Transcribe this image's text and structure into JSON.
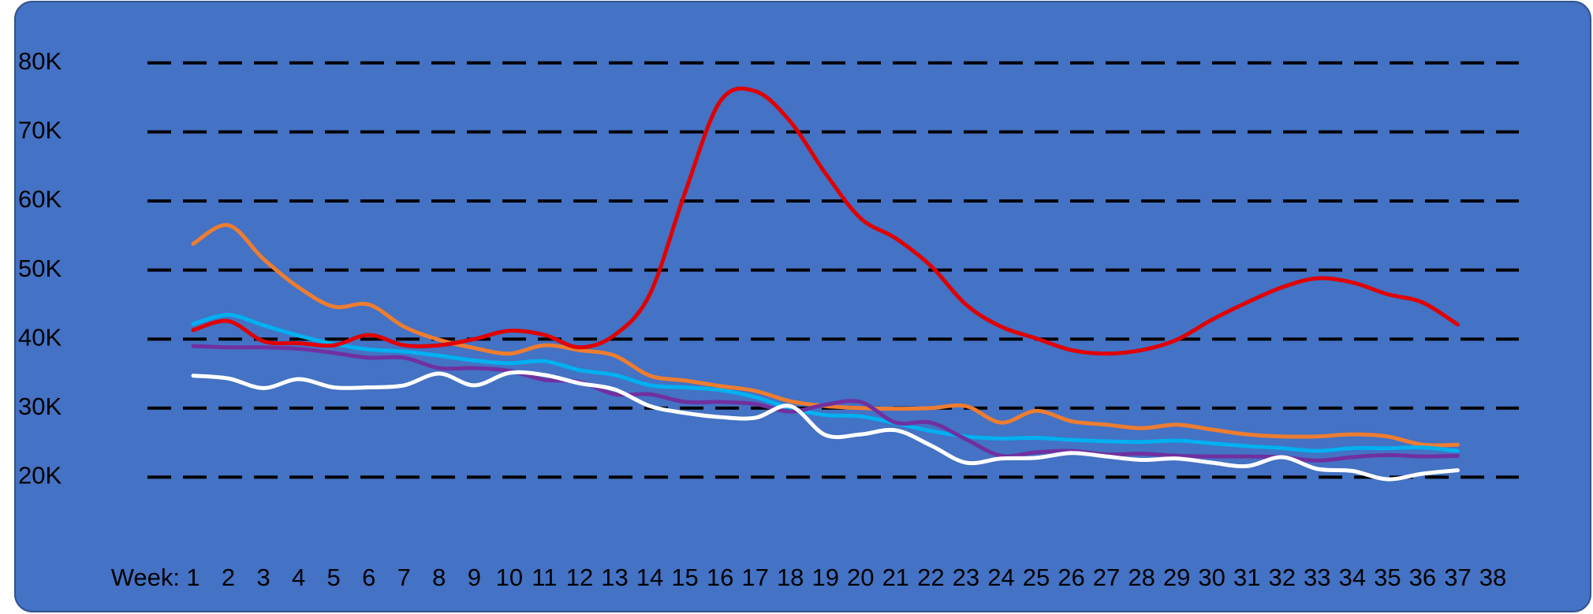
{
  "chart_data": {
    "type": "line",
    "xlabel": "Week:",
    "categories": [
      "1",
      "2",
      "3",
      "4",
      "5",
      "6",
      "7",
      "8",
      "9",
      "10",
      "11",
      "12",
      "13",
      "14",
      "15",
      "16",
      "17",
      "18",
      "19",
      "20",
      "21",
      "22",
      "23",
      "24",
      "25",
      "26",
      "27",
      "28",
      "29",
      "30",
      "31",
      "32",
      "33",
      "34",
      "35",
      "36",
      "37",
      "38"
    ],
    "series": [
      {
        "color": "#ed7d31",
        "values": [
          53800,
          56500,
          51600,
          47500,
          44700,
          45000,
          41800,
          39900,
          38700,
          37900,
          39100,
          38400,
          37600,
          34700,
          34000,
          33200,
          32500,
          31000,
          30300,
          30000,
          29900,
          30000,
          30300,
          27900,
          29600,
          28100,
          27600,
          27100,
          27600,
          26900,
          26200,
          25900,
          25900,
          26200,
          25900,
          24700,
          24700,
          null
        ]
      },
      {
        "color": "#00b0f0",
        "values": [
          42200,
          43500,
          42000,
          40500,
          39300,
          38500,
          38200,
          37600,
          36900,
          36500,
          36800,
          35500,
          34800,
          33300,
          33000,
          32600,
          31600,
          30000,
          29000,
          28800,
          27800,
          26700,
          25900,
          25600,
          25700,
          25400,
          25200,
          25100,
          25300,
          24900,
          24500,
          24200,
          23800,
          24200,
          24200,
          24300,
          23800,
          null
        ]
      },
      {
        "color": "#7030a0",
        "values": [
          39000,
          38800,
          38800,
          38600,
          38000,
          37300,
          37300,
          35800,
          35800,
          35400,
          34100,
          33800,
          32000,
          32000,
          30900,
          30900,
          30600,
          29500,
          30500,
          30900,
          27900,
          27900,
          25500,
          23100,
          23600,
          23800,
          23300,
          23400,
          23100,
          23000,
          23000,
          22900,
          22400,
          22900,
          23200,
          23000,
          23100,
          null
        ]
      },
      {
        "color": "#ffffff",
        "values": [
          34700,
          34300,
          32900,
          34200,
          33000,
          33000,
          33300,
          35000,
          33300,
          35100,
          34800,
          33600,
          32700,
          30300,
          29300,
          28700,
          28600,
          30300,
          26100,
          26200,
          26800,
          24600,
          22100,
          22700,
          22800,
          23500,
          23000,
          22500,
          22700,
          22100,
          21600,
          22900,
          21200,
          20900,
          19700,
          20500,
          21000,
          null
        ]
      },
      {
        "color": "#e00000",
        "values": [
          41300,
          42600,
          39700,
          39400,
          39100,
          40600,
          39100,
          39100,
          40000,
          41200,
          40600,
          38800,
          40600,
          46500,
          61200,
          74400,
          75900,
          71500,
          64000,
          57500,
          54600,
          50600,
          45000,
          41800,
          40100,
          38400,
          37900,
          38400,
          39900,
          42800,
          45300,
          47500,
          48800,
          48200,
          46500,
          45300,
          42100,
          null
        ]
      }
    ],
    "ylim": [
      10000,
      85000
    ],
    "yticks": [
      {
        "value": 20000,
        "label": "20K"
      },
      {
        "value": 30000,
        "label": "30K"
      },
      {
        "value": 40000,
        "label": "40K"
      },
      {
        "value": 50000,
        "label": "50K"
      },
      {
        "value": 60000,
        "label": "60K"
      },
      {
        "value": 70000,
        "label": "70K"
      },
      {
        "value": 80000,
        "label": "80K"
      }
    ],
    "grid": true
  }
}
